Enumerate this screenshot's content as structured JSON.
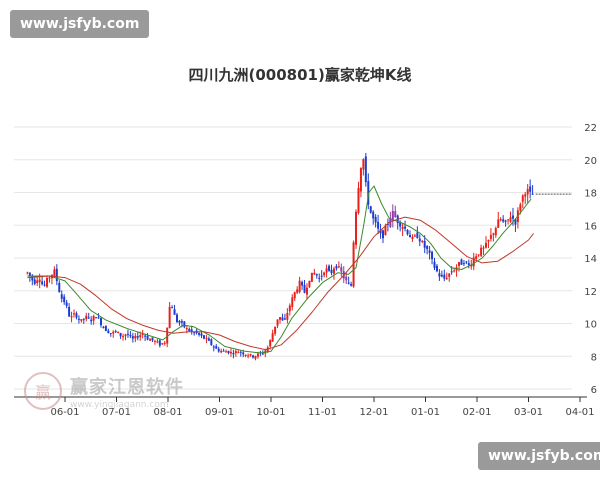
{
  "watermark_top": "www.jsfyb.com",
  "watermark_bottom": "www.jsfyb.com",
  "logo": {
    "main": "赢家江恩软件",
    "sub": "www.yingjiagann.com",
    "seal": "赢"
  },
  "colors": {
    "up": "#e8201a",
    "down": "#1c3ccf",
    "purple": "#8e3aa8",
    "ma_green": "#3c8a2a",
    "ma_red": "#c0392b",
    "axis": "#333333",
    "text": "#444444",
    "grid": "#e6e6e6"
  },
  "chart_data": {
    "type": "candlestick",
    "title": "四川九洲(000801)赢家乾坤K线",
    "y_ticks": [
      6,
      8,
      10,
      12,
      14,
      16,
      18,
      20,
      22
    ],
    "ylim": [
      6,
      23
    ],
    "x_ticks": [
      "06-01",
      "07-01",
      "08-01",
      "09-01",
      "10-01",
      "11-01",
      "12-01",
      "01-01",
      "02-01",
      "03-01",
      "04-01"
    ],
    "xlim_months": [
      -0.73,
      10.45
    ],
    "last_price": 17.9,
    "close_series": [
      [
        -0.73,
        13.1
      ],
      [
        -0.6,
        12.5
      ],
      [
        -0.5,
        12.9
      ],
      [
        -0.42,
        12.2
      ],
      [
        -0.32,
        12.8
      ],
      [
        -0.2,
        13.2
      ],
      [
        -0.15,
        12.5
      ],
      [
        -0.08,
        11.6
      ],
      [
        0,
        11.3
      ],
      [
        0.1,
        10.3
      ],
      [
        0.2,
        10.6
      ],
      [
        0.3,
        10.1
      ],
      [
        0.4,
        10.4
      ],
      [
        0.5,
        10.2
      ],
      [
        0.6,
        10.5
      ],
      [
        0.7,
        10.0
      ],
      [
        0.8,
        9.6
      ],
      [
        0.9,
        9.4
      ],
      [
        1.0,
        9.5
      ],
      [
        1.1,
        9.2
      ],
      [
        1.2,
        9.4
      ],
      [
        1.3,
        9.0
      ],
      [
        1.4,
        9.2
      ],
      [
        1.5,
        9.4
      ],
      [
        1.6,
        9.1
      ],
      [
        1.75,
        8.9
      ],
      [
        1.85,
        8.7
      ],
      [
        1.95,
        8.9
      ],
      [
        2.0,
        10.3
      ],
      [
        2.05,
        11.4
      ],
      [
        2.1,
        10.8
      ],
      [
        2.15,
        10.2
      ],
      [
        2.25,
        10.0
      ],
      [
        2.35,
        9.7
      ],
      [
        2.45,
        9.5
      ],
      [
        2.55,
        9.4
      ],
      [
        2.65,
        9.2
      ],
      [
        2.75,
        9.0
      ],
      [
        2.85,
        8.7
      ],
      [
        2.95,
        8.4
      ],
      [
        3.05,
        8.3
      ],
      [
        3.15,
        8.3
      ],
      [
        3.25,
        8.2
      ],
      [
        3.35,
        8.3
      ],
      [
        3.45,
        8.2
      ],
      [
        3.55,
        8.1
      ],
      [
        3.65,
        8.0
      ],
      [
        3.75,
        8.1
      ],
      [
        3.85,
        8.2
      ],
      [
        3.95,
        8.6
      ],
      [
        4.05,
        9.6
      ],
      [
        4.15,
        10.5
      ],
      [
        4.25,
        10.0
      ],
      [
        4.35,
        11.0
      ],
      [
        4.45,
        11.8
      ],
      [
        4.55,
        12.5
      ],
      [
        4.65,
        11.9
      ],
      [
        4.75,
        12.8
      ],
      [
        4.85,
        13.1
      ],
      [
        4.95,
        12.7
      ],
      [
        5.05,
        13.4
      ],
      [
        5.15,
        13.0
      ],
      [
        5.25,
        13.6
      ],
      [
        5.35,
        13.2
      ],
      [
        5.45,
        12.6
      ],
      [
        5.5,
        12.4
      ],
      [
        5.55,
        12.0
      ],
      [
        5.62,
        16.0
      ],
      [
        5.7,
        18.5
      ],
      [
        5.78,
        20.5
      ],
      [
        5.86,
        17.8
      ],
      [
        5.95,
        16.6
      ],
      [
        6.05,
        15.9
      ],
      [
        6.15,
        15.2
      ],
      [
        6.25,
        16.0
      ],
      [
        6.35,
        16.8
      ],
      [
        6.45,
        16.3
      ],
      [
        6.55,
        16.0
      ],
      [
        6.65,
        15.6
      ],
      [
        6.75,
        15.1
      ],
      [
        6.85,
        15.4
      ],
      [
        6.95,
        14.8
      ],
      [
        7.05,
        14.4
      ],
      [
        7.15,
        13.6
      ],
      [
        7.25,
        13.0
      ],
      [
        7.35,
        12.7
      ],
      [
        7.45,
        13.0
      ],
      [
        7.55,
        13.3
      ],
      [
        7.65,
        13.6
      ],
      [
        7.75,
        13.8
      ],
      [
        7.85,
        13.5
      ],
      [
        7.95,
        14.1
      ],
      [
        8.05,
        14.4
      ],
      [
        8.15,
        14.6
      ],
      [
        8.25,
        15.2
      ],
      [
        8.35,
        15.8
      ],
      [
        8.45,
        16.4
      ],
      [
        8.55,
        16.0
      ],
      [
        8.65,
        16.6
      ],
      [
        8.75,
        16.2
      ],
      [
        8.85,
        17.5
      ],
      [
        8.95,
        18.2
      ],
      [
        9.05,
        17.8
      ],
      [
        9.1,
        17.9
      ]
    ],
    "ma_green": [
      [
        -0.73,
        12.9
      ],
      [
        -0.3,
        12.9
      ],
      [
        0,
        12.6
      ],
      [
        0.2,
        11.9
      ],
      [
        0.5,
        10.8
      ],
      [
        0.8,
        10.2
      ],
      [
        1.2,
        9.7
      ],
      [
        1.6,
        9.3
      ],
      [
        1.9,
        9.0
      ],
      [
        2.1,
        9.5
      ],
      [
        2.3,
        9.9
      ],
      [
        2.5,
        9.8
      ],
      [
        2.8,
        9.3
      ],
      [
        3.1,
        8.6
      ],
      [
        3.5,
        8.3
      ],
      [
        3.8,
        8.2
      ],
      [
        4.0,
        8.3
      ],
      [
        4.2,
        9.2
      ],
      [
        4.4,
        10.3
      ],
      [
        4.7,
        11.5
      ],
      [
        5.0,
        12.5
      ],
      [
        5.3,
        13.1
      ],
      [
        5.5,
        13.0
      ],
      [
        5.65,
        13.4
      ],
      [
        5.8,
        16.0
      ],
      [
        5.9,
        18.0
      ],
      [
        6.0,
        18.4
      ],
      [
        6.15,
        17.3
      ],
      [
        6.3,
        16.4
      ],
      [
        6.5,
        16.2
      ],
      [
        6.7,
        15.9
      ],
      [
        6.9,
        15.5
      ],
      [
        7.1,
        14.9
      ],
      [
        7.3,
        14.0
      ],
      [
        7.5,
        13.4
      ],
      [
        7.7,
        13.3
      ],
      [
        7.9,
        13.6
      ],
      [
        8.1,
        14.0
      ],
      [
        8.3,
        14.7
      ],
      [
        8.5,
        15.5
      ],
      [
        8.7,
        16.2
      ],
      [
        8.9,
        17.0
      ],
      [
        9.05,
        17.6
      ]
    ],
    "ma_red": [
      [
        -0.73,
        12.8
      ],
      [
        -0.3,
        12.9
      ],
      [
        0,
        12.8
      ],
      [
        0.3,
        12.4
      ],
      [
        0.6,
        11.7
      ],
      [
        0.9,
        10.9
      ],
      [
        1.2,
        10.3
      ],
      [
        1.5,
        9.9
      ],
      [
        1.8,
        9.6
      ],
      [
        2.1,
        9.4
      ],
      [
        2.4,
        9.5
      ],
      [
        2.7,
        9.5
      ],
      [
        3.0,
        9.3
      ],
      [
        3.3,
        8.9
      ],
      [
        3.6,
        8.6
      ],
      [
        3.9,
        8.4
      ],
      [
        4.2,
        8.7
      ],
      [
        4.5,
        9.6
      ],
      [
        4.8,
        10.7
      ],
      [
        5.1,
        11.9
      ],
      [
        5.4,
        12.9
      ],
      [
        5.7,
        14.0
      ],
      [
        6.0,
        15.3
      ],
      [
        6.3,
        16.2
      ],
      [
        6.6,
        16.5
      ],
      [
        6.9,
        16.3
      ],
      [
        7.2,
        15.7
      ],
      [
        7.5,
        14.9
      ],
      [
        7.8,
        14.1
      ],
      [
        8.1,
        13.7
      ],
      [
        8.4,
        13.8
      ],
      [
        8.7,
        14.4
      ],
      [
        9.0,
        15.1
      ],
      [
        9.1,
        15.5
      ]
    ]
  }
}
